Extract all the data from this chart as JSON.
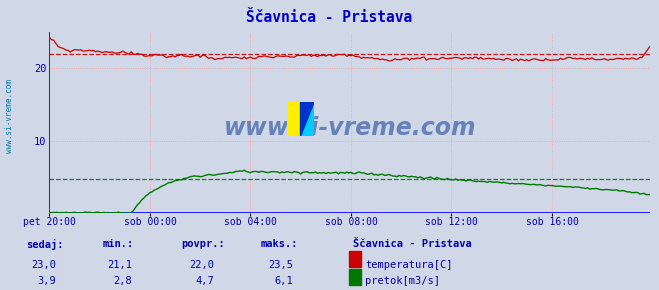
{
  "title": "Ščavnica - Pristava",
  "title_color": "#0000cc",
  "bg_color": "#d0d8e8",
  "grid_color": "#ff9999",
  "grid_color_v": "#ff9999",
  "x_label_color": "#0000aa",
  "y_label_color": "#0000aa",
  "watermark": "www.si-vreme.com",
  "watermark_color": "#4466aa",
  "x_ticks_labels": [
    "pet 20:00",
    "sob 00:00",
    "sob 04:00",
    "sob 08:00",
    "sob 12:00",
    "sob 16:00"
  ],
  "x_ticks_pos": [
    0,
    48,
    96,
    144,
    192,
    240
  ],
  "ylim": [
    0,
    25
  ],
  "xlim": [
    0,
    287
  ],
  "y_ticks": [
    10,
    20
  ],
  "temp_avg": 22.0,
  "temp_min": 21.1,
  "temp_max": 23.5,
  "temp_current": 23.0,
  "flow_avg": 4.7,
  "flow_min": 2.8,
  "flow_max": 6.1,
  "flow_current": 3.9,
  "temp_color": "#cc0000",
  "flow_color": "#007700",
  "left_border_color": "#0000ff",
  "bottom_line_color": "#0000ff",
  "arrow_color": "#cc0000",
  "n_points": 288,
  "table_header_color": "#0000aa",
  "table_value_color": "#0000aa",
  "sidebar_text_color": "#0077aa",
  "legend_title": "Ščavnica - Pristava",
  "legend_temp_label": "temperatura[C]",
  "legend_flow_label": "pretok[m3/s]"
}
